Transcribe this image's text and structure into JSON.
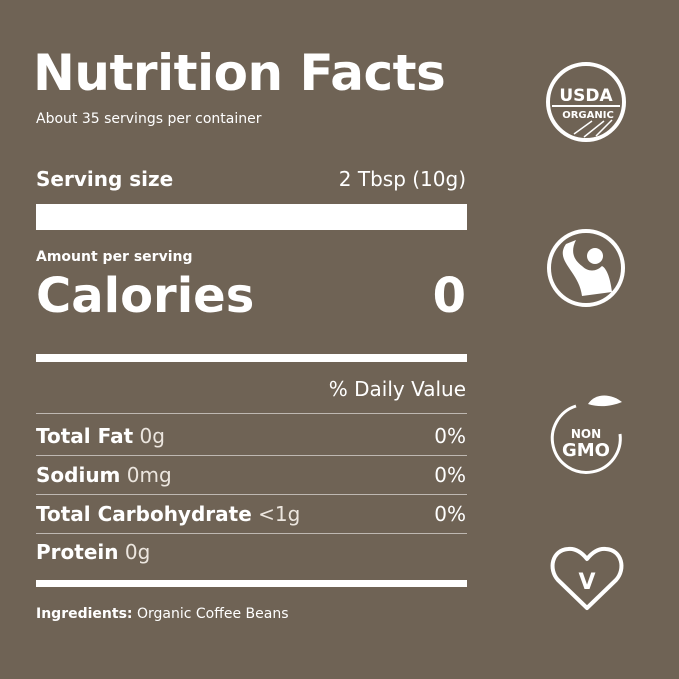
{
  "label": {
    "title": "Nutrition Facts",
    "servings_per_container": "About 35 servings per container",
    "serving_size_label": "Serving size",
    "serving_size_value": "2 Tbsp (10g)",
    "amount_per_serving": "Amount per serving",
    "calories_label": "Calories",
    "calories_value": "0",
    "daily_value_header": "% Daily Value",
    "nutrients": [
      {
        "name": "Total Fat",
        "amount": "0g",
        "dv": "0%"
      },
      {
        "name": "Sodium",
        "amount": "0mg",
        "dv": "0%"
      },
      {
        "name": "Total Carbohydrate",
        "amount": "<1g",
        "dv": "0%"
      },
      {
        "name": "Protein",
        "amount": "0g",
        "dv": ""
      }
    ],
    "ingredients_label": "Ingredients:",
    "ingredients_value": "Organic Coffee Beans"
  },
  "badges": [
    {
      "icon": "usda-organic-icon",
      "text_top": "USDA",
      "text_bottom": "ORGANIC"
    },
    {
      "icon": "fair-trade-icon"
    },
    {
      "icon": "non-gmo-icon",
      "text_top": "NON",
      "text_bottom": "GMO"
    },
    {
      "icon": "vegan-heart-icon",
      "text": "V"
    }
  ],
  "colors": {
    "background": "#6f6355",
    "foreground": "#ffffff"
  }
}
